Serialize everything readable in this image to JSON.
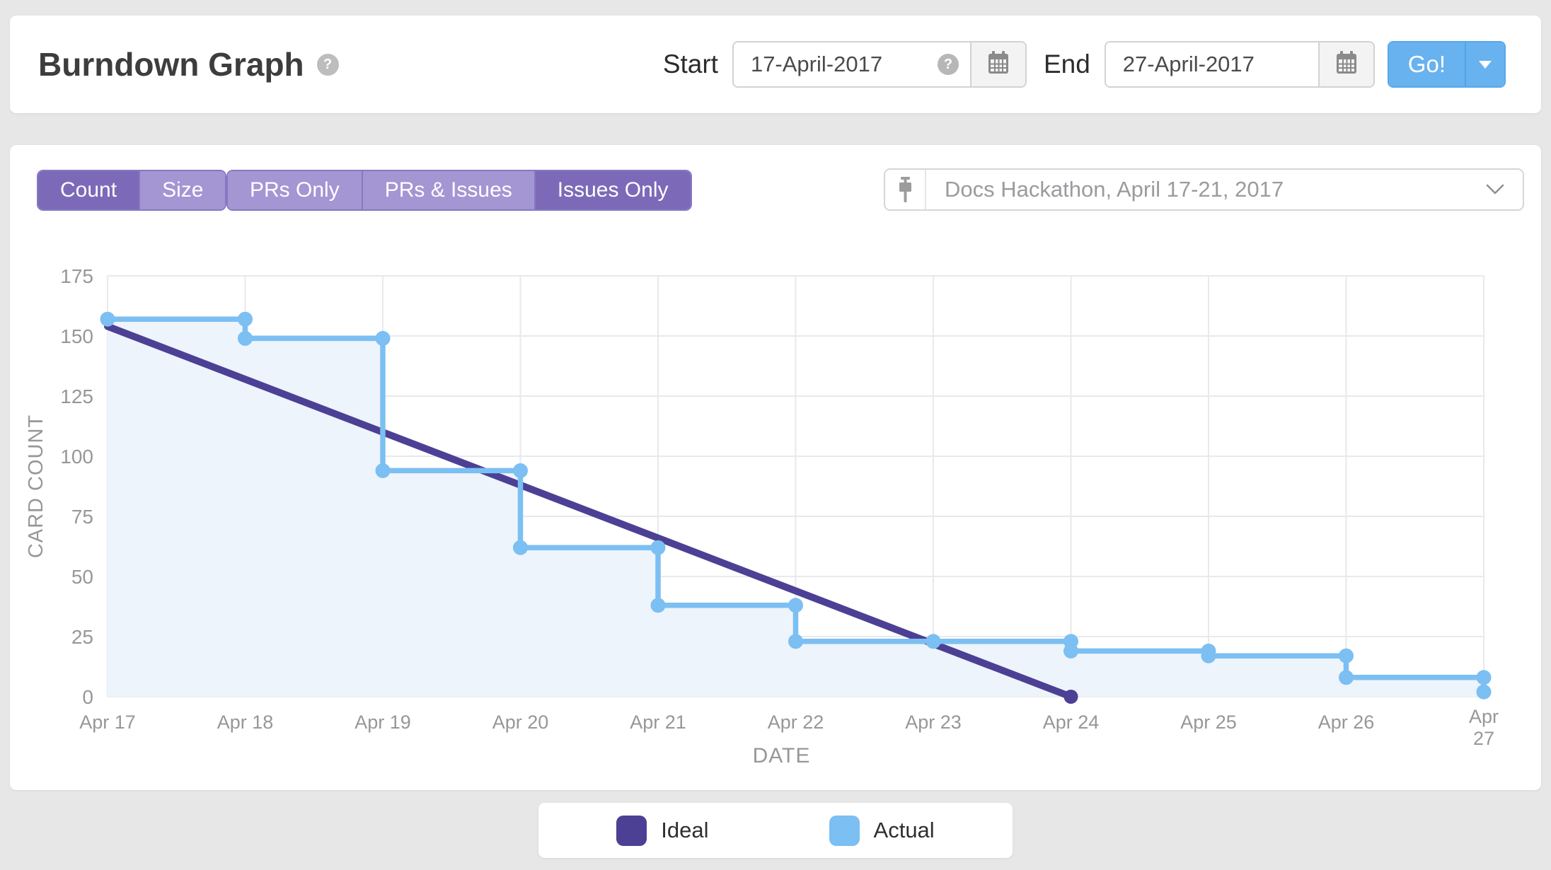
{
  "header": {
    "title": "Burndown Graph",
    "help_icon": "?",
    "start_label": "Start",
    "start_value": "17-April-2017",
    "input_help_icon": "?",
    "end_label": "End",
    "end_value": "27-April-2017",
    "go_label": "Go!"
  },
  "controls": {
    "count_label": "Count",
    "size_label": "Size",
    "prs_only_label": "PRs Only",
    "prs_issues_label": "PRs & Issues",
    "issues_only_label": "Issues Only",
    "active_unit": "Count",
    "active_filter": "Issues Only",
    "milestone_label": "Docs Hackathon, April 17-21, 2017"
  },
  "legend": {
    "ideal_label": "Ideal",
    "actual_label": "Actual"
  },
  "chart_data": {
    "type": "line",
    "title": "Burndown Graph",
    "xlabel": "DATE",
    "ylabel": "CARD COUNT",
    "x_categories": [
      "Apr 17",
      "Apr 18",
      "Apr 19",
      "Apr 20",
      "Apr 21",
      "Apr 22",
      "Apr 23",
      "Apr 24",
      "Apr 25",
      "Apr 26",
      "Apr 27"
    ],
    "yticks": [
      0,
      25,
      50,
      75,
      100,
      125,
      150,
      175
    ],
    "ylim": [
      0,
      175
    ],
    "grid": true,
    "legend_position": "bottom",
    "colors": {
      "ideal": "#4C4095",
      "actual": "#7CBFF2",
      "actual_area": "#EDF4FB",
      "grid": "#E9E9ED",
      "axis_text": "#97979B"
    },
    "series": [
      {
        "name": "Ideal",
        "style": "straight",
        "points": [
          [
            0,
            154
          ],
          [
            7,
            0
          ]
        ]
      },
      {
        "name": "Actual",
        "style": "step",
        "points": [
          [
            0,
            157
          ],
          [
            1,
            157
          ],
          [
            1,
            149
          ],
          [
            2,
            149
          ],
          [
            2,
            94
          ],
          [
            3,
            94
          ],
          [
            3,
            62
          ],
          [
            4,
            62
          ],
          [
            4,
            38
          ],
          [
            5,
            38
          ],
          [
            5,
            23
          ],
          [
            6,
            23
          ],
          [
            7,
            23
          ],
          [
            7,
            19
          ],
          [
            8,
            19
          ],
          [
            8,
            17
          ],
          [
            9,
            17
          ],
          [
            9,
            8
          ],
          [
            10,
            8
          ],
          [
            10,
            2
          ]
        ]
      }
    ]
  }
}
